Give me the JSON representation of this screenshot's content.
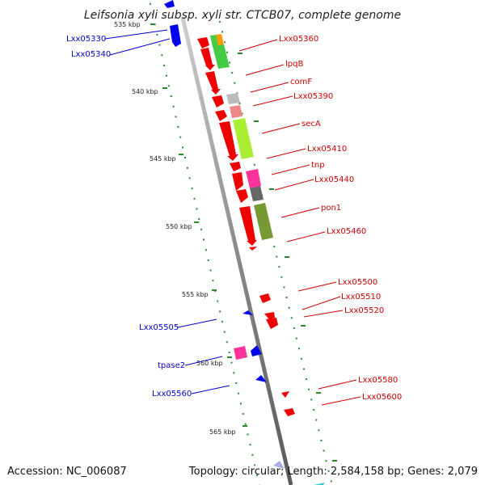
{
  "title": "Leifsonia xyli subsp. xyli str. CTCB07, complete genome",
  "accession_text": "Accession: NC_006087",
  "topology_text": "Topology: circular; Length: 2,584,158 bp; Genes: 2,079",
  "colors": {
    "backbone": "#8c8c8c",
    "forward_label": "#cc0000",
    "reverse_label": "#0000cc",
    "tick": "#2a8a2a"
  },
  "ticks": [
    "535 kbp",
    "540 kbp",
    "545 kbp",
    "550 kbp",
    "555 kbp",
    "560 kbp",
    "565 kbp"
  ],
  "labels": {
    "reverse": [
      "Lxx05330",
      "Lxx05340",
      "Lxx05505",
      "tpase2",
      "Lxx05560"
    ],
    "forward": [
      "Lxx05360",
      "lpqB",
      "comF",
      "Lxx05390",
      "secA",
      "Lxx05410",
      "tnp",
      "Lxx05440",
      "pon1",
      "Lxx05460",
      "Lxx05500",
      "Lxx05510",
      "Lxx05520",
      "Lxx05580",
      "Lxx05600"
    ]
  },
  "feature_colors": {
    "fwd_gene": "#ee0000",
    "rev_gene": "#0000ee",
    "cds_green": "#44cc44",
    "cds_orange": "#ff9900",
    "cds_gray": "#bbbbbb",
    "cds_pink": "#ee8888",
    "cds_lime": "#aaee33",
    "cds_magenta": "#ff3399",
    "cds_darkgray": "#666666",
    "cds_olive": "#779933"
  }
}
